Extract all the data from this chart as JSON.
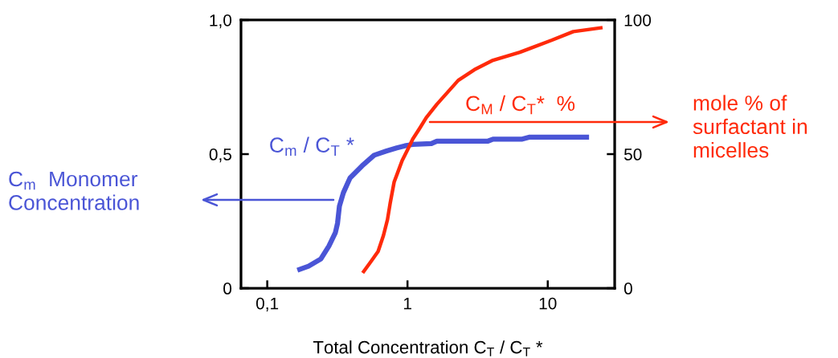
{
  "chart_data": {
    "type": "line",
    "xlabel": "Total Concentration C$_{T}$ / C$_{T}$ *",
    "log": "x",
    "xlim": [
      0.065,
      30
    ],
    "xticks": [
      {
        "value": 0.1,
        "label": "0,1"
      },
      1,
      10
    ],
    "ylim": [
      0,
      1
    ],
    "yticks": [
      0,
      {
        "value": 0.5,
        "label": "0,5"
      },
      {
        "value": 1,
        "label": "1,0"
      }
    ],
    "y2lim": [
      0,
      100
    ],
    "y2ticks": [
      0,
      50,
      100
    ],
    "grid": false,
    "legend": false,
    "marker": "none",
    "line_style": "solid",
    "series": [
      {
        "name": "C$_{m}$ / C$_{T}$ *",
        "color": "#4a55d6",
        "x": [
          0.164,
          0.197,
          0.241,
          0.275,
          0.306,
          0.317,
          0.327,
          0.349,
          0.389,
          0.474,
          0.578,
          0.704,
          0.839,
          0.957,
          1.09,
          1.48,
          1.62,
          3.72,
          4.07,
          6.58,
          7.35,
          19.7
        ],
        "values": [
          0.067,
          0.082,
          0.109,
          0.157,
          0.207,
          0.242,
          0.306,
          0.356,
          0.411,
          0.456,
          0.496,
          0.511,
          0.523,
          0.531,
          0.536,
          0.539,
          0.548,
          0.548,
          0.556,
          0.556,
          0.563,
          0.563
        ]
      },
      {
        "name": "C$_{M}$ / C$_{T}$*  %",
        "color": "#ff2a0a",
        "axis": "y2",
        "x": [
          0.479,
          0.553,
          0.617,
          0.674,
          0.72,
          0.752,
          0.803,
          0.858,
          0.916,
          1.0,
          1.09,
          1.22,
          1.36,
          1.62,
          2.3,
          3.0,
          4.07,
          6.32,
          7.52,
          10.7,
          15.2,
          24.6
        ],
        "values": [
          5.7,
          10.2,
          13.7,
          19.7,
          25.6,
          31.6,
          39.6,
          43.6,
          47.6,
          51.6,
          55.6,
          59.6,
          63.6,
          68.6,
          77.5,
          81.5,
          85.0,
          88.0,
          89.5,
          92.5,
          95.7,
          97.2
        ]
      }
    ],
    "annotations": [
      "C$_{m}$  Monomer\nConcentration",
      "mole % of\nsurfactant in\nmicelles"
    ]
  }
}
